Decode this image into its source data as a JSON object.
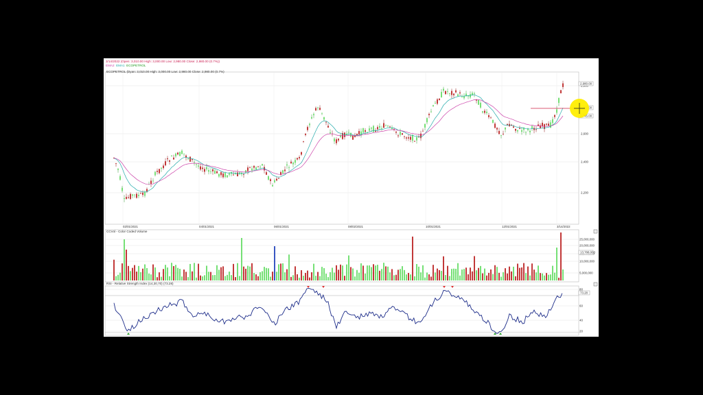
{
  "header": {
    "line1": "3/14/2022 (Open: 3,010.00 High: 3,000.00 Low: 2,980.00 Close: 2,980.00 (0.7%))",
    "legend": [
      {
        "label": "EMA2",
        "color": "#cc44aa"
      },
      {
        "label": "EMA1",
        "color": "#22aaaa"
      },
      {
        "label": "ECOPETROL",
        "color": "#229922"
      }
    ],
    "price_caption": "ECOPETROL (Dyan: 3,010.00 High: 3,000.00 Low: 2,980.00 Close: 2,980.00 (0.7%)"
  },
  "price_panel": {
    "y_ticks": [
      "2,800",
      "2,600",
      "2,400",
      "2,200"
    ],
    "price_tags": [
      "2,980.00",
      "2,760.00",
      "2,745.00"
    ],
    "x_labels": [
      "02/01/2021",
      "04/01/2021",
      "06/01/2021",
      "08/02/2021",
      "10/01/2021",
      "12/01/2021",
      "3/14/2022"
    ]
  },
  "volume_panel": {
    "title": "CCVol - Color Coded Volume",
    "y_ticks": [
      "25,000,000",
      "20,000,000",
      "15,000,000",
      "10,000,000",
      "5,000,000"
    ],
    "tag": "13,788,003"
  },
  "rsi_panel": {
    "title": "RSI - Relative Strength Index (14,30,70) (73.28)",
    "y_ticks": [
      "80",
      "60",
      "40",
      "20"
    ],
    "tag": "73.28"
  },
  "colors": {
    "up": "#66dd66",
    "down": "#bb2222",
    "rsi": "#1a2a88",
    "ema_fast": "#22aaaa",
    "ema_slow": "#cc44aa",
    "highlight": "#ffee00"
  }
}
